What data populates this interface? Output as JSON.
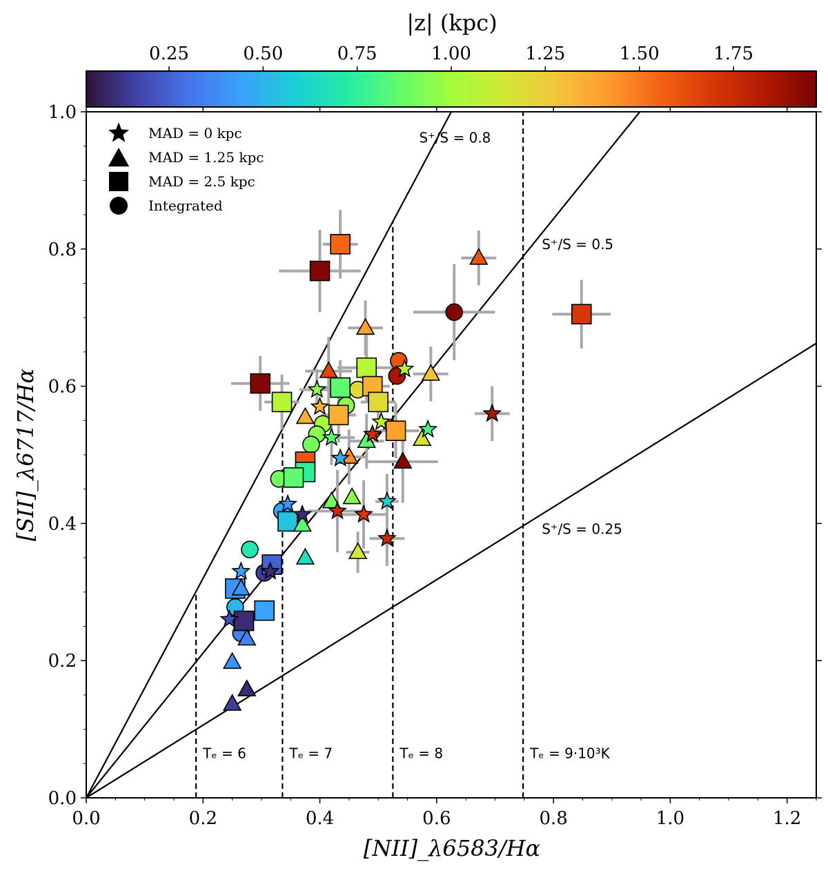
{
  "colors": {
    "text": "#000000",
    "error_bar": "#a8a8a8",
    "frame": "#000000",
    "colormap_turbo": [
      "#30123b",
      "#4145ab",
      "#4675ed",
      "#39a2fc",
      "#1bcfd4",
      "#24eca6",
      "#61fc6c",
      "#a4fc3b",
      "#d1e834",
      "#f3c63a",
      "#fe9b2d",
      "#f36315",
      "#d93806",
      "#b11901",
      "#7a0403"
    ]
  },
  "legend": {
    "items": [
      {
        "marker": "star",
        "label": "MAD = 0 kpc"
      },
      {
        "marker": "triangle",
        "label": "MAD = 1.25 kpc"
      },
      {
        "marker": "square",
        "label": "MAD = 2.5 kpc"
      },
      {
        "marker": "circle",
        "label": "Integrated"
      }
    ]
  },
  "chart_data": {
    "type": "scatter",
    "title": "",
    "xlabel": "[NII]_λ6583/Hα",
    "ylabel": "[SII]_λ6717/Hα",
    "xlim": [
      0.0,
      1.25
    ],
    "ylim": [
      0.0,
      1.0
    ],
    "xticks": [
      "0.0",
      "0.2",
      "0.4",
      "0.6",
      "0.8",
      "1.0",
      "1.2"
    ],
    "yticks": [
      "0.0",
      "0.2",
      "0.4",
      "0.6",
      "0.8",
      "1.0"
    ],
    "colorbar": {
      "label": "|z| (kpc)",
      "range": [
        0.03,
        1.97
      ],
      "ticks": [
        "0.25",
        "0.50",
        "0.75",
        "1.00",
        "1.25",
        "1.50",
        "1.75"
      ]
    },
    "reference_lines": [
      {
        "slope": 1.6,
        "label": "S⁺/S = 0.8",
        "label_at": [
          0.57,
          0.955
        ]
      },
      {
        "slope": 1.055,
        "label": "S⁺/S = 0.5",
        "label_at": [
          0.78,
          0.8
        ]
      },
      {
        "slope": 0.53,
        "label": "S⁺/S = 0.25",
        "label_at": [
          0.78,
          0.385
        ]
      }
    ],
    "temperature_lines": [
      {
        "x": 0.188,
        "label": "Tₑ = 6"
      },
      {
        "x": 0.336,
        "label": "Tₑ = 7"
      },
      {
        "x": 0.525,
        "label": "Tₑ = 8"
      },
      {
        "x": 0.748,
        "label": "Tₑ = 9·10³K"
      }
    ],
    "temperature_label_y": 0.058,
    "series": [
      {
        "name": "MAD = 0 kpc",
        "marker": "star",
        "points": [
          {
            "x": 0.395,
            "y": 0.595,
            "z": 0.95,
            "xerr": 0.03,
            "yerr": 0.03
          },
          {
            "x": 0.4,
            "y": 0.57,
            "z": 1.35
          },
          {
            "x": 0.42,
            "y": 0.525,
            "z": 0.85,
            "xerr": 0.04,
            "yerr": 0.04
          },
          {
            "x": 0.435,
            "y": 0.495,
            "z": 0.5
          },
          {
            "x": 0.505,
            "y": 0.548,
            "z": 1.1
          },
          {
            "x": 0.545,
            "y": 0.625,
            "z": 1.05
          },
          {
            "x": 0.585,
            "y": 0.537,
            "z": 0.8
          },
          {
            "x": 0.49,
            "y": 0.53,
            "z": 1.75
          },
          {
            "x": 0.695,
            "y": 0.56,
            "z": 1.85,
            "xerr": 0.03,
            "yerr": 0.04
          },
          {
            "x": 0.345,
            "y": 0.428,
            "z": 0.4
          },
          {
            "x": 0.37,
            "y": 0.413,
            "z": 0.1
          },
          {
            "x": 0.43,
            "y": 0.418,
            "z": 1.75,
            "xerr": 0.05,
            "yerr": 0.06
          },
          {
            "x": 0.475,
            "y": 0.413,
            "z": 1.7,
            "xerr": 0.04,
            "yerr": 0.05
          },
          {
            "x": 0.515,
            "y": 0.432,
            "z": 0.6,
            "xerr": 0.02,
            "yerr": 0.04
          },
          {
            "x": 0.515,
            "y": 0.378,
            "z": 1.75,
            "xerr": 0.03,
            "yerr": 0.04
          },
          {
            "x": 0.265,
            "y": 0.33,
            "z": 0.45
          },
          {
            "x": 0.315,
            "y": 0.33,
            "z": 0.1
          },
          {
            "x": 0.245,
            "y": 0.26,
            "z": 0.2
          }
        ]
      },
      {
        "name": "MAD = 1.25 kpc",
        "marker": "triangle",
        "points": [
          {
            "x": 0.672,
            "y": 0.787,
            "z": 1.6,
            "xerr": 0.03,
            "yerr": 0.04
          },
          {
            "x": 0.478,
            "y": 0.685,
            "z": 1.4,
            "xerr": 0.03,
            "yerr": 0.04
          },
          {
            "x": 0.415,
            "y": 0.622,
            "z": 1.65,
            "xerr": 0.04,
            "yerr": 0.05
          },
          {
            "x": 0.59,
            "y": 0.618,
            "z": 1.3,
            "xerr": 0.03,
            "yerr": 0.04
          },
          {
            "x": 0.375,
            "y": 0.555,
            "z": 1.35
          },
          {
            "x": 0.45,
            "y": 0.497,
            "z": 1.45,
            "xerr": 0.03,
            "yerr": 0.04
          },
          {
            "x": 0.48,
            "y": 0.52,
            "z": 0.85,
            "xerr": 0.03,
            "yerr": 0.04
          },
          {
            "x": 0.542,
            "y": 0.49,
            "z": 1.95,
            "xerr": 0.06,
            "yerr": 0.06
          },
          {
            "x": 0.575,
            "y": 0.523,
            "z": 1.15
          },
          {
            "x": 0.42,
            "y": 0.432,
            "z": 0.9
          },
          {
            "x": 0.455,
            "y": 0.438,
            "z": 0.95
          },
          {
            "x": 0.37,
            "y": 0.398,
            "z": 0.85
          },
          {
            "x": 0.465,
            "y": 0.358,
            "z": 1.15,
            "xerr": 0.02,
            "yerr": 0.03
          },
          {
            "x": 0.375,
            "y": 0.35,
            "z": 0.65
          },
          {
            "x": 0.265,
            "y": 0.305,
            "z": 0.4
          },
          {
            "x": 0.275,
            "y": 0.232,
            "z": 0.35
          },
          {
            "x": 0.25,
            "y": 0.198,
            "z": 0.4
          },
          {
            "x": 0.275,
            "y": 0.158,
            "z": 0.1
          },
          {
            "x": 0.25,
            "y": 0.137,
            "z": 0.15
          }
        ]
      },
      {
        "name": "MAD = 2.5 kpc",
        "marker": "square",
        "points": [
          {
            "x": 0.435,
            "y": 0.807,
            "z": 1.55,
            "xerr": 0.03,
            "yerr": 0.05
          },
          {
            "x": 0.4,
            "y": 0.768,
            "z": 1.95,
            "xerr": 0.07,
            "yerr": 0.06
          },
          {
            "x": 0.848,
            "y": 0.705,
            "z": 1.7,
            "xerr": 0.05,
            "yerr": 0.05
          },
          {
            "x": 0.298,
            "y": 0.604,
            "z": 1.95,
            "xerr": 0.05,
            "yerr": 0.04
          },
          {
            "x": 0.335,
            "y": 0.577,
            "z": 1.05,
            "xerr": 0.03,
            "yerr": 0.04
          },
          {
            "x": 0.48,
            "y": 0.627,
            "z": 1.05,
            "xerr": 0.05,
            "yerr": 0.05
          },
          {
            "x": 0.435,
            "y": 0.598,
            "z": 0.85,
            "xerr": 0.04,
            "yerr": 0.04
          },
          {
            "x": 0.49,
            "y": 0.6,
            "z": 1.35,
            "xerr": 0.03,
            "yerr": 0.03
          },
          {
            "x": 0.5,
            "y": 0.577,
            "z": 1.2,
            "xerr": 0.03,
            "yerr": 0.03
          },
          {
            "x": 0.432,
            "y": 0.558,
            "z": 1.35,
            "xerr": 0.03,
            "yerr": 0.04
          },
          {
            "x": 0.53,
            "y": 0.535,
            "z": 1.4,
            "xerr": 0.04,
            "yerr": 0.04
          },
          {
            "x": 0.375,
            "y": 0.49,
            "z": 1.6
          },
          {
            "x": 0.375,
            "y": 0.475,
            "z": 0.75
          },
          {
            "x": 0.355,
            "y": 0.467,
            "z": 0.85
          },
          {
            "x": 0.345,
            "y": 0.403,
            "z": 0.55
          },
          {
            "x": 0.318,
            "y": 0.34,
            "z": 0.25
          },
          {
            "x": 0.255,
            "y": 0.305,
            "z": 0.4
          },
          {
            "x": 0.305,
            "y": 0.273,
            "z": 0.45
          },
          {
            "x": 0.27,
            "y": 0.258,
            "z": 0.1
          }
        ]
      },
      {
        "name": "Integrated",
        "marker": "circle",
        "points": [
          {
            "x": 0.63,
            "y": 0.708,
            "z": 1.95,
            "xerr": 0.07,
            "yerr": 0.07
          },
          {
            "x": 0.535,
            "y": 0.637,
            "z": 1.6
          },
          {
            "x": 0.532,
            "y": 0.615,
            "z": 1.85
          },
          {
            "x": 0.465,
            "y": 0.595,
            "z": 1.2
          },
          {
            "x": 0.445,
            "y": 0.572,
            "z": 0.95
          },
          {
            "x": 0.405,
            "y": 0.545,
            "z": 1.0
          },
          {
            "x": 0.395,
            "y": 0.53,
            "z": 0.95
          },
          {
            "x": 0.385,
            "y": 0.515,
            "z": 0.9
          },
          {
            "x": 0.33,
            "y": 0.465,
            "z": 0.9
          },
          {
            "x": 0.335,
            "y": 0.418,
            "z": 0.45
          },
          {
            "x": 0.28,
            "y": 0.362,
            "z": 0.7
          },
          {
            "x": 0.305,
            "y": 0.328,
            "z": 0.15
          },
          {
            "x": 0.255,
            "y": 0.278,
            "z": 0.5
          },
          {
            "x": 0.265,
            "y": 0.24,
            "z": 0.35
          }
        ]
      }
    ]
  }
}
